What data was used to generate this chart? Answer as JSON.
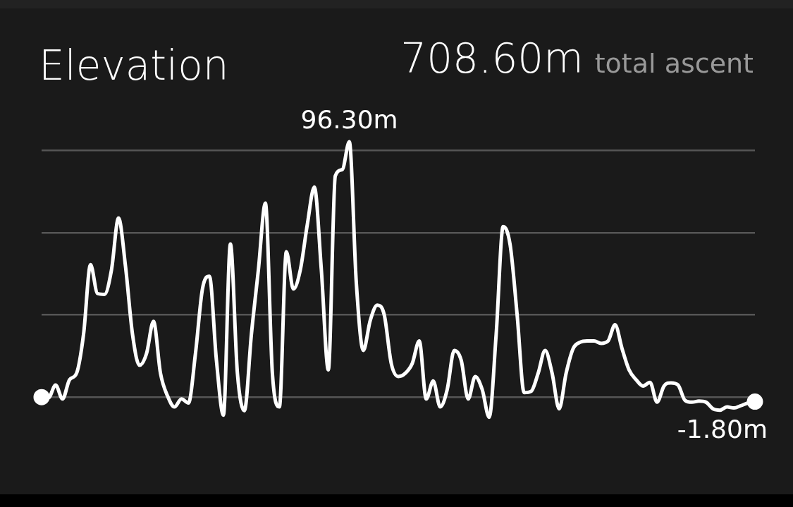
{
  "chart_data": {
    "type": "line",
    "title": "Elevation",
    "subtitle": "708.60m",
    "annotations": [
      "total ascent"
    ],
    "categories": [
      null,
      null,
      null,
      null,
      null,
      null,
      null,
      null,
      null,
      null,
      null,
      null,
      null,
      null,
      null,
      null,
      null,
      null,
      null,
      null,
      null,
      null,
      null,
      null,
      null,
      null,
      null,
      null,
      null,
      null,
      null,
      null,
      null,
      null,
      null,
      null,
      null,
      null,
      null,
      null,
      null,
      null,
      null,
      null,
      null,
      null,
      null,
      null,
      null,
      null,
      null,
      null,
      null,
      null,
      null,
      null,
      null,
      null,
      null,
      null,
      null,
      null,
      null,
      null,
      null,
      null,
      null,
      null,
      null,
      null,
      null,
      null,
      null,
      null,
      null,
      null,
      null,
      null,
      null,
      null,
      null,
      null,
      null,
      null,
      null,
      null,
      null,
      null,
      null,
      null,
      null,
      null,
      null,
      null,
      null,
      null,
      null,
      null,
      null,
      null,
      null,
      null,
      null
    ],
    "series": [
      {
        "color": "#ffffff",
        "values": [
          -0.1,
          -0.3,
          4.5,
          -0.8,
          6.5,
          8.9,
          23.6,
          49.9,
          39.0,
          38.7,
          48.0,
          67.5,
          49.2,
          23.6,
          11.9,
          16.3,
          28.5,
          8.9,
          0.4,
          -3.8,
          -0.8,
          -2.3,
          16.3,
          40.7,
          45.5,
          13.8,
          -6.9,
          57.7,
          8.9,
          -5.2,
          23.6,
          48.0,
          73.1,
          8.9,
          -3.8,
          54.8,
          40.7,
          48.0,
          65.1,
          79.2,
          48.0,
          10.2,
          83.4,
          85.8,
          96.3,
          43.1,
          17.5,
          28.9,
          34.6,
          30.9,
          12.6,
          7.7,
          8.9,
          12.6,
          21.1,
          -0.8,
          6.0,
          -3.8,
          2.8,
          17.5,
          13.8,
          -0.8,
          7.7,
          2.8,
          -7.7,
          23.6,
          64.3,
          57.3,
          30.9,
          1.6,
          2.1,
          8.9,
          17.5,
          8.9,
          -4.5,
          8.9,
          18.2,
          20.6,
          21.1,
          21.1,
          20.2,
          21.1,
          27.2,
          18.2,
          10.2,
          6.5,
          4.1,
          5.5,
          -2.0,
          4.1,
          5.3,
          4.5,
          -1.3,
          -2.0,
          -1.6,
          -2.0,
          -4.5,
          -5.0,
          -3.8,
          -4.2,
          -3.3,
          -2.3,
          -1.8
        ],
        "value_labels": [
          null,
          null,
          null,
          null,
          null,
          null,
          null,
          null,
          null,
          null,
          null,
          null,
          null,
          null,
          null,
          null,
          null,
          null,
          null,
          null,
          null,
          null,
          null,
          null,
          null,
          null,
          null,
          null,
          null,
          null,
          null,
          null,
          null,
          null,
          null,
          null,
          null,
          null,
          null,
          null,
          null,
          null,
          null,
          null,
          "96.30m",
          null,
          null,
          null,
          null,
          null,
          null,
          null,
          null,
          null,
          null,
          null,
          null,
          null,
          null,
          null,
          null,
          null,
          null,
          null,
          null,
          null,
          null,
          null,
          null,
          null,
          null,
          null,
          null,
          null,
          null,
          null,
          null,
          null,
          null,
          null,
          null,
          null,
          null,
          null,
          null,
          null,
          null,
          null,
          null,
          null,
          null,
          null,
          null,
          null,
          null,
          null,
          null,
          null,
          null,
          null,
          null,
          null,
          "-1.80m"
        ]
      }
    ],
    "yticks": [
      {
        "value": 0,
        "label": null
      },
      {
        "value": 31,
        "label": null
      },
      {
        "value": 62,
        "label": null
      },
      {
        "value": 93,
        "label": null
      }
    ],
    "grid": "y",
    "legend": false
  }
}
